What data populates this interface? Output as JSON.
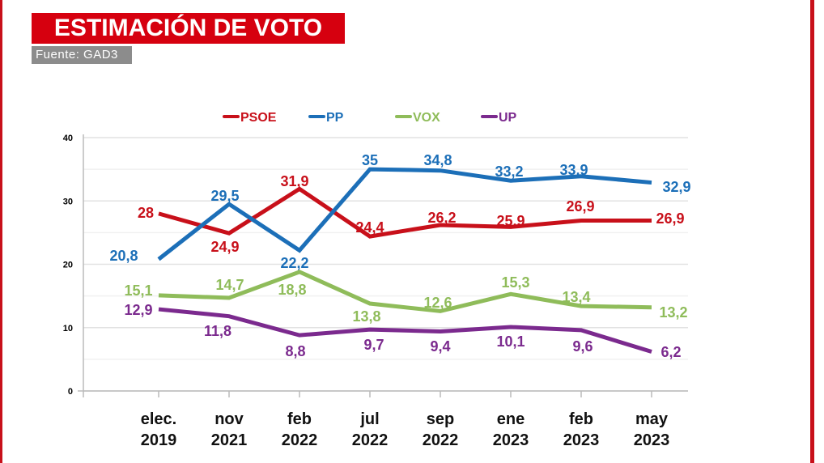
{
  "title": "ESTIMACIÓN DE VOTO",
  "source": "Fuente: GAD3",
  "chart_data": {
    "type": "line",
    "title": "ESTIMACIÓN DE VOTO",
    "categories": [
      [
        "elec.",
        "2019"
      ],
      [
        "nov",
        "2021"
      ],
      [
        "feb",
        "2022"
      ],
      [
        "jul",
        "2022"
      ],
      [
        "sep",
        "2022"
      ],
      [
        "ene",
        "2023"
      ],
      [
        "feb",
        "2023"
      ],
      [
        "may",
        "2023"
      ]
    ],
    "ylim": [
      0,
      40
    ],
    "yticks": [
      "0",
      "10",
      "20",
      "30",
      "40"
    ],
    "grid": true,
    "legend": "top",
    "series": [
      {
        "name": "PSOE",
        "color": "#c8101a",
        "values": [
          28,
          24.9,
          31.9,
          24.4,
          26.2,
          25.9,
          26.9,
          26.9
        ],
        "labels": [
          "28",
          "24,9",
          "31,9",
          "24,4",
          "26,2",
          "25,9",
          "26,9",
          "26,9"
        ]
      },
      {
        "name": "PP",
        "color": "#1c6fb8",
        "values": [
          20.8,
          29.5,
          22.2,
          35,
          34.8,
          33.2,
          33.9,
          32.9
        ],
        "labels": [
          "20,8",
          "29,5",
          "22,2",
          "35",
          "34,8",
          "33,2",
          "33,9",
          "32,9"
        ]
      },
      {
        "name": "VOX",
        "color": "#8fbc5a",
        "values": [
          15.1,
          14.7,
          18.8,
          13.8,
          12.6,
          15.3,
          13.4,
          13.2
        ],
        "labels": [
          "15,1",
          "14,7",
          "18,8",
          "13,8",
          "12,6",
          "15,3",
          "13,4",
          "13,2"
        ]
      },
      {
        "name": "UP",
        "color": "#7b2a8e",
        "values": [
          12.9,
          11.8,
          8.8,
          9.7,
          9.4,
          10.1,
          9.6,
          6.2
        ],
        "labels": [
          "12,9",
          "11,8",
          "8,8",
          "9,7",
          "9,4",
          "10,1",
          "9,6",
          "6,2"
        ]
      }
    ]
  }
}
